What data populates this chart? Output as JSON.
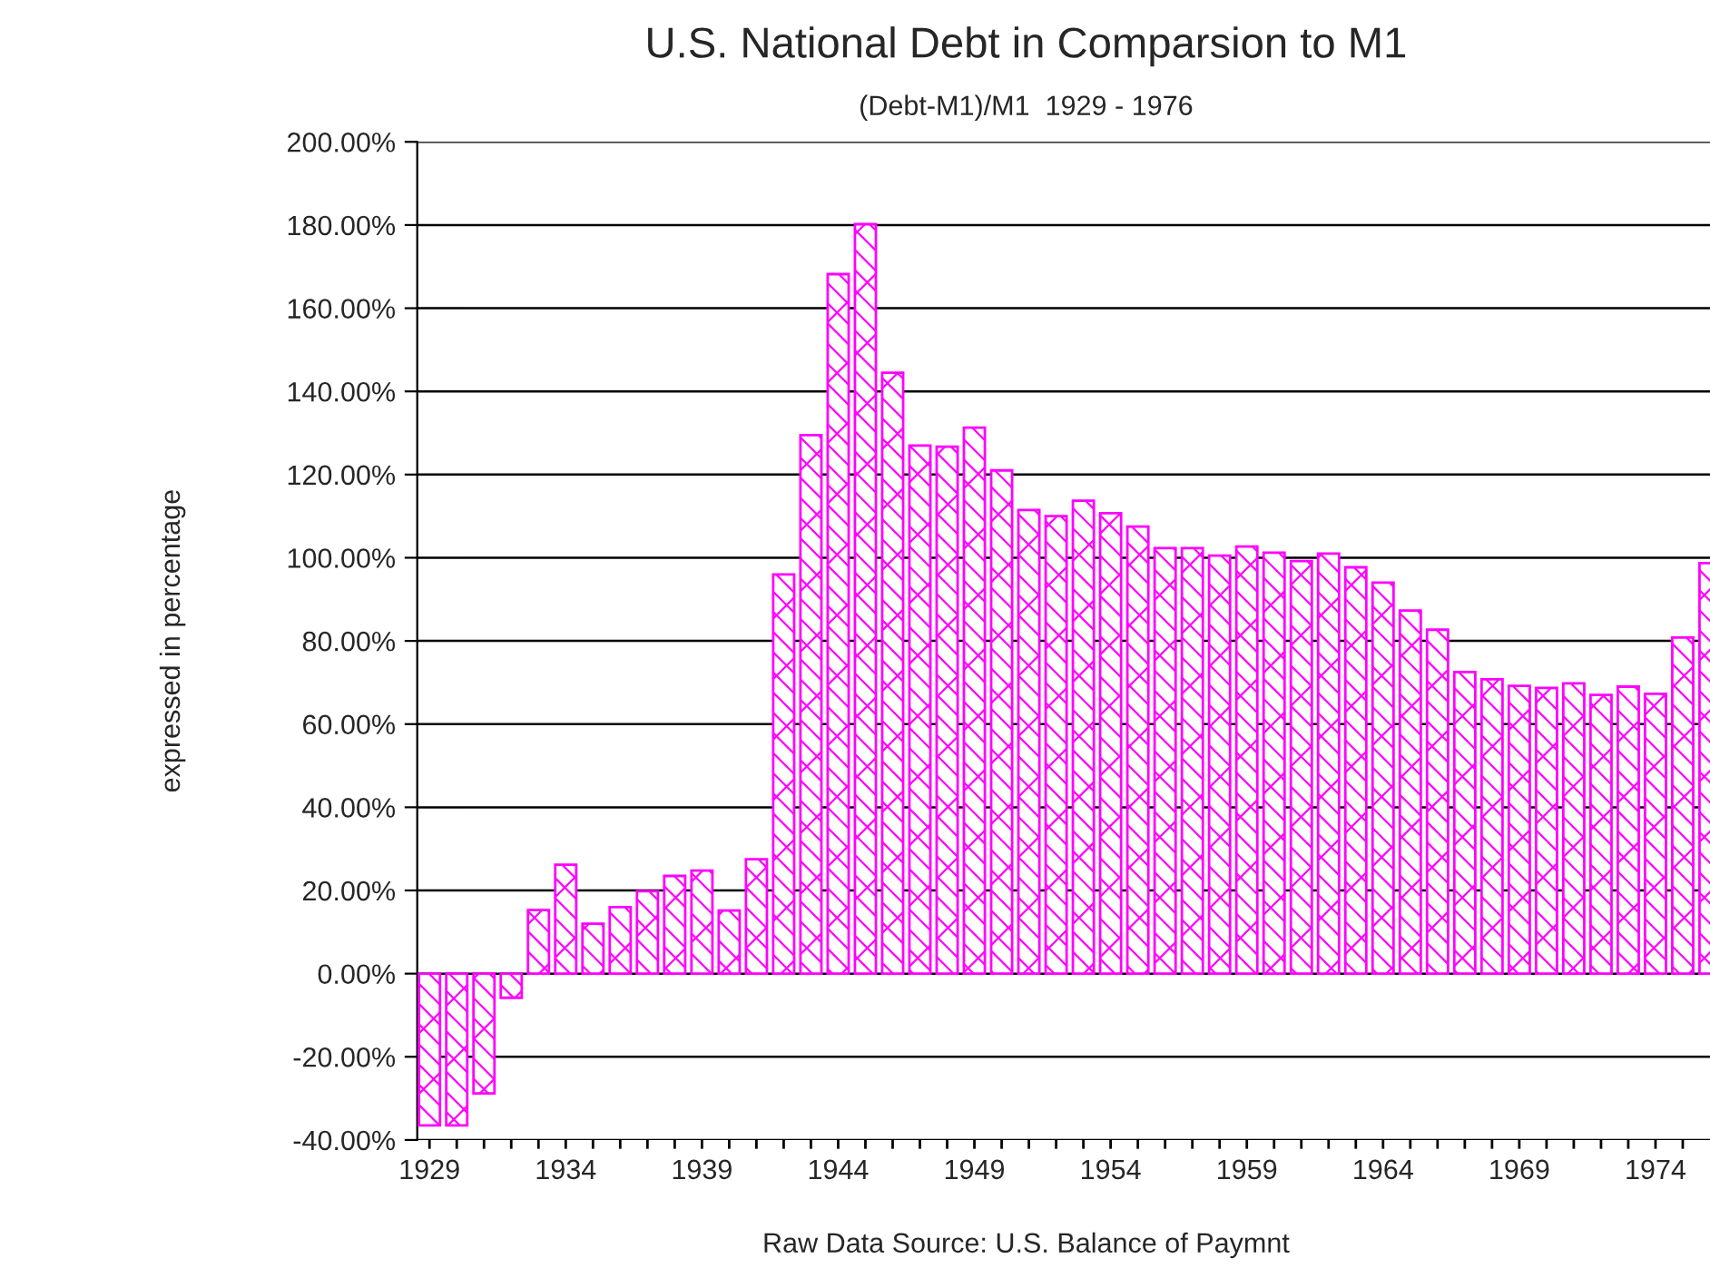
{
  "chart_data": {
    "type": "bar",
    "title": "U.S. National Debt in Comparsion to M1",
    "subtitle": "(Debt-M1)/M1  1929 - 1976",
    "ylabel": "expressed in percentage",
    "annotations": [
      "Raw Data Source: U.S. Balance of Paymnt"
    ],
    "x": [
      1929,
      1930,
      1931,
      1932,
      1933,
      1934,
      1935,
      1936,
      1937,
      1938,
      1939,
      1940,
      1941,
      1942,
      1943,
      1944,
      1945,
      1946,
      1947,
      1948,
      1949,
      1950,
      1951,
      1952,
      1953,
      1954,
      1955,
      1956,
      1957,
      1958,
      1959,
      1960,
      1961,
      1962,
      1963,
      1964,
      1965,
      1966,
      1967,
      1968,
      1969,
      1970,
      1971,
      1972,
      1973,
      1974,
      1975,
      1976
    ],
    "values": [
      -36.5,
      -36.5,
      -28.8,
      -5.8,
      15.3,
      26.2,
      12,
      16,
      19.8,
      23.5,
      24.8,
      15.2,
      27.5,
      96,
      129.5,
      168.2,
      180.2,
      144.5,
      127,
      126.7,
      131.3,
      121,
      111.5,
      110,
      113.7,
      110.7,
      107.5,
      102.3,
      102.3,
      100.5,
      102.7,
      101.2,
      99.2,
      101,
      97.7,
      94,
      87.3,
      82.7,
      72.5,
      70.8,
      69.2,
      68.7,
      69.8,
      67,
      69,
      67.3,
      80.8,
      98.7
    ],
    "color": "#ff00ff",
    "xlim": [
      1928.55,
      1976.0
    ],
    "xticks": [
      1929,
      {
        "value": 1930,
        "label": null
      },
      {
        "value": 1931,
        "label": null
      },
      {
        "value": 1932,
        "label": null
      },
      {
        "value": 1933,
        "label": null
      },
      1934,
      {
        "value": 1935,
        "label": null
      },
      {
        "value": 1936,
        "label": null
      },
      {
        "value": 1937,
        "label": null
      },
      {
        "value": 1938,
        "label": null
      },
      1939,
      {
        "value": 1940,
        "label": null
      },
      {
        "value": 1941,
        "label": null
      },
      {
        "value": 1942,
        "label": null
      },
      {
        "value": 1943,
        "label": null
      },
      1944,
      {
        "value": 1945,
        "label": null
      },
      {
        "value": 1946,
        "label": null
      },
      {
        "value": 1947,
        "label": null
      },
      {
        "value": 1948,
        "label": null
      },
      1949,
      {
        "value": 1950,
        "label": null
      },
      {
        "value": 1951,
        "label": null
      },
      {
        "value": 1952,
        "label": null
      },
      {
        "value": 1953,
        "label": null
      },
      1954,
      {
        "value": 1955,
        "label": null
      },
      {
        "value": 1956,
        "label": null
      },
      {
        "value": 1957,
        "label": null
      },
      {
        "value": 1958,
        "label": null
      },
      1959,
      {
        "value": 1960,
        "label": null
      },
      {
        "value": 1961,
        "label": null
      },
      {
        "value": 1962,
        "label": null
      },
      {
        "value": 1963,
        "label": null
      },
      1964,
      {
        "value": 1965,
        "label": null
      },
      {
        "value": 1966,
        "label": null
      },
      {
        "value": 1967,
        "label": null
      },
      {
        "value": 1968,
        "label": null
      },
      1969,
      {
        "value": 1970,
        "label": null
      },
      {
        "value": 1971,
        "label": null
      },
      {
        "value": 1972,
        "label": null
      },
      {
        "value": 1973,
        "label": null
      },
      1974,
      {
        "value": 1975,
        "label": null
      }
    ],
    "ylim": [
      -40,
      200
    ],
    "yticks": [
      {
        "value": -40,
        "label": "-40.00%"
      },
      {
        "value": -20,
        "label": "-20.00%"
      },
      {
        "value": 0,
        "label": "0.00%"
      },
      {
        "value": 20,
        "label": "20.00%"
      },
      {
        "value": 40,
        "label": "40.00%"
      },
      {
        "value": 60,
        "label": "60.00%"
      },
      {
        "value": 80,
        "label": "80.00%"
      },
      {
        "value": 100,
        "label": "100.00%"
      },
      {
        "value": 120,
        "label": "120.00%"
      },
      {
        "value": 140,
        "label": "140.00%"
      },
      {
        "value": 160,
        "label": "160.00%"
      },
      {
        "value": 180,
        "label": "180.00%"
      },
      {
        "value": 200,
        "label": "200.00%"
      }
    ],
    "grid": "y"
  }
}
